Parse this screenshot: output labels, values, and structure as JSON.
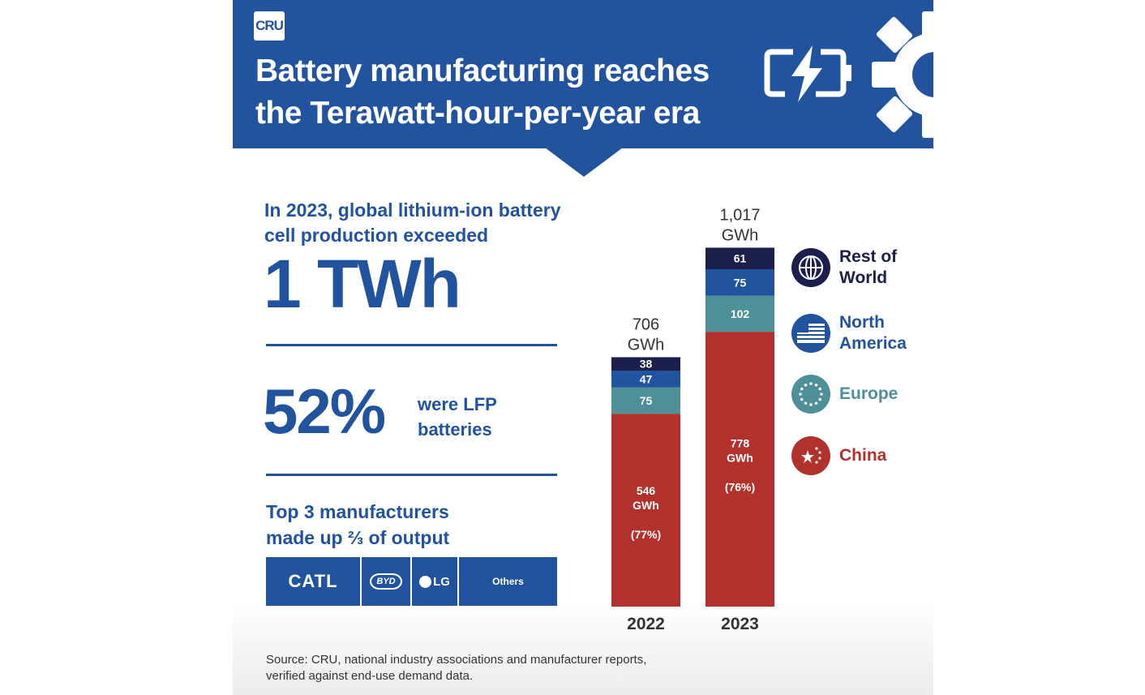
{
  "header": {
    "logo_text": "CRU",
    "title_line1": "Battery manufacturing reaches",
    "title_line2": "the Terawatt-hour-per-year era"
  },
  "highlights": {
    "intro_line1": "In 2023, global lithium-ion battery",
    "intro_line2": "cell production exceeded",
    "big_stat": "1 TWh",
    "lfp_percent": "52%",
    "lfp_line1": "were LFP",
    "lfp_line2": "batteries",
    "top3_line1": "Top 3 manufacturers",
    "top3_line2": "made up ⅔ of output"
  },
  "manufacturers": [
    {
      "name": "CATL"
    },
    {
      "name": "BYD"
    },
    {
      "name": "LG"
    },
    {
      "name": "Others"
    }
  ],
  "legend": [
    {
      "label_line1": "Rest of",
      "label_line2": "World",
      "color": "#1b1f4b",
      "icon": "globe-icon"
    },
    {
      "label_line1": "North",
      "label_line2": "America",
      "color": "#21539e",
      "icon": "us-flag-icon"
    },
    {
      "label_line1": "Europe",
      "label_line2": "",
      "color": "#4e8f98",
      "icon": "eu-stars-icon"
    },
    {
      "label_line1": "China",
      "label_line2": "",
      "color": "#b3312c",
      "icon": "china-stars-icon"
    }
  ],
  "chart_data": {
    "type": "bar",
    "stacked": true,
    "categories": [
      "2022",
      "2023"
    ],
    "totals": [
      706,
      1017
    ],
    "total_labels": [
      [
        "706",
        "GWh"
      ],
      [
        "1,017",
        "GWh"
      ]
    ],
    "unit": "GWh",
    "series": [
      {
        "name": "China",
        "values": [
          546,
          778
        ],
        "color": "#b3312c",
        "labels": [
          [
            "546",
            "GWh",
            "(77%)"
          ],
          [
            "778",
            "GWh",
            "(76%)"
          ]
        ]
      },
      {
        "name": "Europe",
        "values": [
          75,
          102
        ],
        "color": "#4e8f98",
        "labels": [
          [
            "75"
          ],
          [
            "102"
          ]
        ]
      },
      {
        "name": "North America",
        "values": [
          47,
          75
        ],
        "color": "#21539e",
        "labels": [
          [
            "47"
          ],
          [
            "75"
          ]
        ]
      },
      {
        "name": "Rest of World",
        "values": [
          38,
          61
        ],
        "color": "#1b1f4b",
        "labels": [
          [
            "38"
          ],
          [
            "61"
          ]
        ]
      }
    ],
    "ylim": [
      0,
      1017
    ],
    "grid": false,
    "legend_position": "right"
  },
  "source": {
    "line1": "Source: CRU, national industry associations and manufacturer reports,",
    "line2": "verified against end-use demand data."
  }
}
